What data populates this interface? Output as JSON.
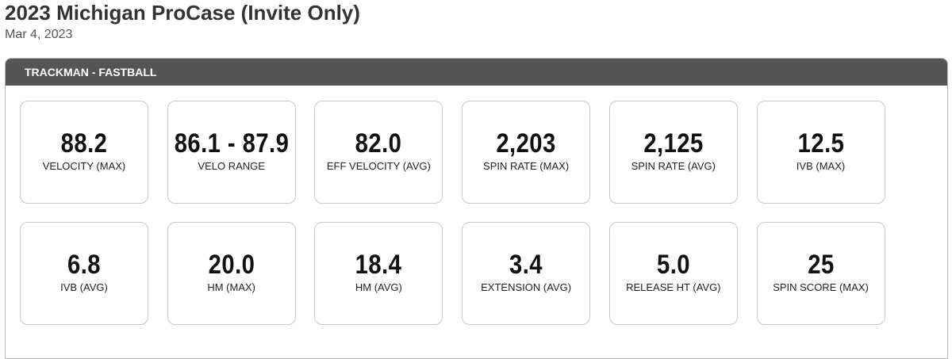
{
  "header": {
    "title": "2023 Michigan ProCase (Invite Only)",
    "date": "Mar 4, 2023"
  },
  "panel": {
    "title": "TRACKMAN - FASTBALL",
    "cards": [
      {
        "value": "88.2",
        "label": "VELOCITY (MAX)"
      },
      {
        "value": "86.1 - 87.9",
        "label": "VELO RANGE"
      },
      {
        "value": "82.0",
        "label": "EFF VELOCITY (AVG)"
      },
      {
        "value": "2,203",
        "label": "SPIN RATE (MAX)"
      },
      {
        "value": "2,125",
        "label": "SPIN RATE (AVG)"
      },
      {
        "value": "12.5",
        "label": "IVB (MAX)"
      },
      {
        "value": "6.8",
        "label": "IVB (AVG)"
      },
      {
        "value": "20.0",
        "label": "HM (MAX)"
      },
      {
        "value": "18.4",
        "label": "HM (AVG)"
      },
      {
        "value": "3.4",
        "label": "EXTENSION (AVG)"
      },
      {
        "value": "5.0",
        "label": "RELEASE HT (AVG)"
      },
      {
        "value": "25",
        "label": "SPIN SCORE (MAX)"
      }
    ]
  }
}
